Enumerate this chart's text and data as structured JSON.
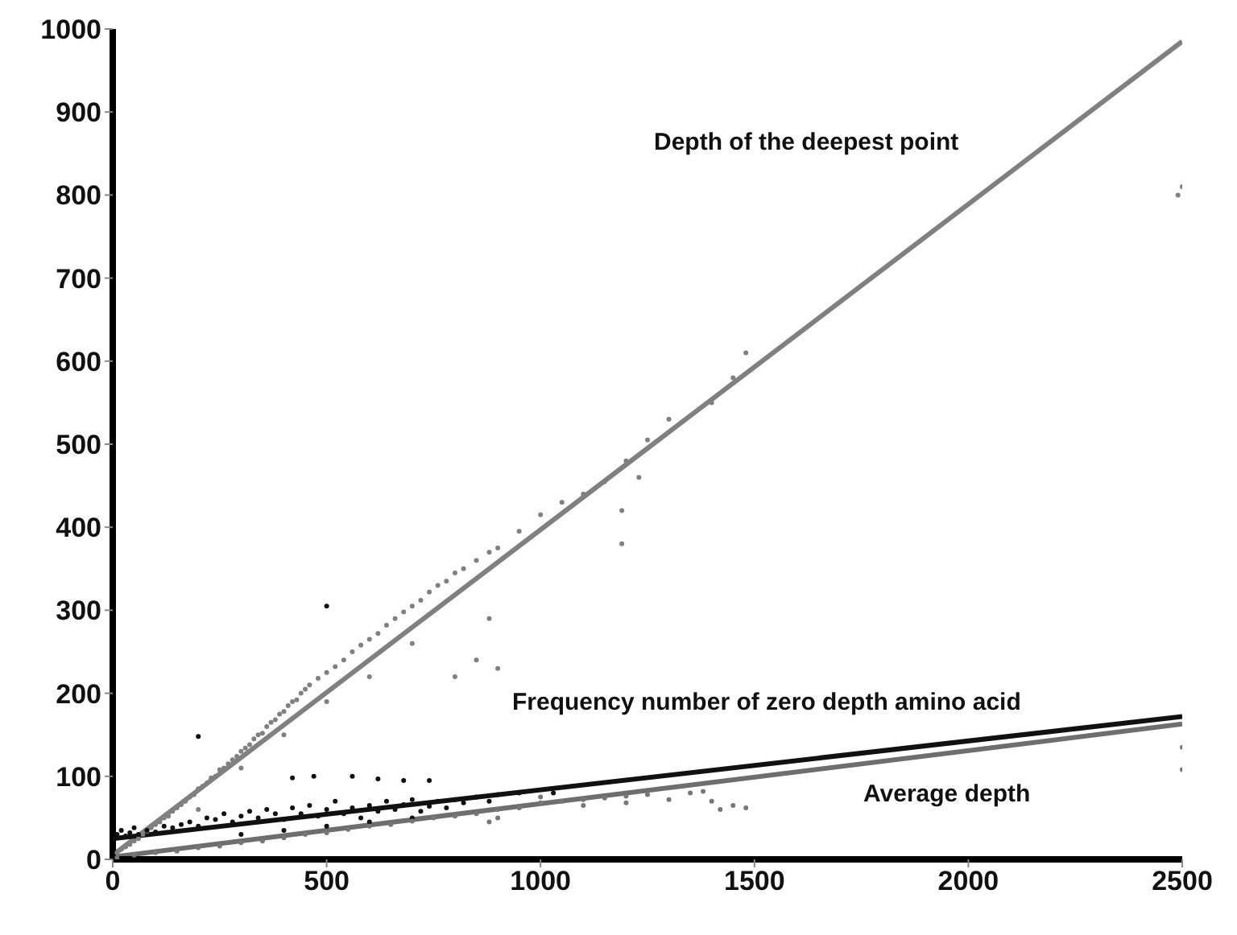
{
  "chart_data": {
    "type": "scatter",
    "xlim": [
      0,
      2500
    ],
    "ylim": [
      0,
      1000
    ],
    "xticks": [
      0,
      500,
      1000,
      1500,
      2000,
      2500
    ],
    "yticks": [
      0,
      100,
      200,
      300,
      400,
      500,
      600,
      700,
      800,
      900,
      1000
    ],
    "grid": false,
    "legend": false,
    "marker": "circle",
    "annotations": [
      "Depth of the deepest point",
      "Frequency number of zero depth amino acid",
      "Average depth"
    ],
    "series": [
      {
        "color": "#808080",
        "x": [
          10,
          20,
          30,
          40,
          50,
          60,
          70,
          80,
          90,
          100,
          110,
          120,
          130,
          140,
          150,
          160,
          170,
          180,
          190,
          200,
          210,
          220,
          230,
          240,
          250,
          260,
          270,
          280,
          290,
          300,
          310,
          320,
          330,
          340,
          350,
          360,
          370,
          380,
          390,
          400,
          410,
          420,
          430,
          440,
          450,
          460,
          480,
          500,
          520,
          540,
          560,
          580,
          600,
          620,
          640,
          660,
          680,
          700,
          720,
          740,
          760,
          780,
          800,
          820,
          850,
          880,
          900,
          950,
          1000,
          1050,
          1100,
          1150,
          1200,
          1250,
          1300,
          1400,
          1450,
          1480,
          2490,
          2500,
          200,
          300,
          400,
          500,
          600,
          700,
          800,
          850,
          880,
          900,
          1190,
          1190,
          1230
        ],
        "values": [
          8,
          12,
          15,
          18,
          22,
          25,
          30,
          34,
          38,
          42,
          45,
          50,
          52,
          58,
          62,
          66,
          70,
          75,
          78,
          85,
          88,
          92,
          98,
          100,
          108,
          110,
          115,
          120,
          124,
          130,
          134,
          138,
          145,
          150,
          152,
          160,
          165,
          168,
          175,
          178,
          185,
          190,
          192,
          200,
          205,
          210,
          218,
          225,
          232,
          240,
          250,
          258,
          265,
          272,
          282,
          290,
          298,
          305,
          312,
          322,
          330,
          335,
          345,
          350,
          360,
          370,
          375,
          395,
          415,
          430,
          440,
          455,
          480,
          505,
          530,
          550,
          580,
          610,
          800,
          810,
          60,
          110,
          150,
          190,
          220,
          260,
          220,
          240,
          290,
          230,
          380,
          420,
          460
        ]
      },
      {
        "color": "#111111",
        "x": [
          0,
          10,
          20,
          30,
          40,
          50,
          60,
          80,
          100,
          120,
          140,
          160,
          180,
          200,
          220,
          240,
          260,
          280,
          300,
          320,
          340,
          360,
          380,
          400,
          420,
          440,
          460,
          480,
          500,
          520,
          540,
          560,
          580,
          600,
          620,
          640,
          660,
          680,
          700,
          720,
          740,
          760,
          780,
          800,
          820,
          850,
          880,
          900,
          950,
          1030,
          200,
          500,
          420,
          470,
          560,
          620,
          680,
          740,
          300,
          400,
          500,
          600,
          700
        ],
        "values": [
          25,
          30,
          35,
          28,
          32,
          38,
          30,
          35,
          33,
          40,
          38,
          42,
          45,
          40,
          50,
          48,
          55,
          45,
          52,
          58,
          50,
          60,
          55,
          48,
          62,
          55,
          65,
          52,
          60,
          70,
          55,
          62,
          50,
          65,
          58,
          70,
          60,
          66,
          72,
          58,
          64,
          70,
          62,
          72,
          68,
          75,
          70,
          78,
          80,
          80,
          148,
          305,
          98,
          100,
          100,
          97,
          95,
          95,
          30,
          35,
          40,
          45,
          50
        ]
      },
      {
        "color": "#777777",
        "x": [
          10,
          50,
          100,
          150,
          200,
          250,
          300,
          350,
          400,
          450,
          500,
          550,
          600,
          650,
          700,
          750,
          800,
          850,
          900,
          950,
          1000,
          1050,
          1100,
          1150,
          1200,
          1250,
          1300,
          1350,
          1380,
          1400,
          1420,
          1450,
          1480,
          2500,
          2500,
          880,
          900,
          1000,
          1100,
          1200
        ],
        "values": [
          2,
          5,
          8,
          10,
          14,
          16,
          20,
          22,
          26,
          30,
          32,
          36,
          40,
          42,
          46,
          50,
          52,
          55,
          60,
          62,
          68,
          70,
          72,
          74,
          76,
          78,
          72,
          80,
          82,
          70,
          60,
          65,
          62,
          135,
          108,
          45,
          50,
          75,
          65,
          68
        ]
      },
      {
        "type": "line",
        "marker": "none",
        "color": "#808080",
        "x": [
          0,
          2500
        ],
        "values": [
          5,
          985
        ]
      },
      {
        "type": "line",
        "marker": "none",
        "color": "#111111",
        "x": [
          0,
          2500
        ],
        "values": [
          25,
          172
        ]
      },
      {
        "type": "line",
        "marker": "none",
        "color": "#6e6e6e",
        "x": [
          0,
          2500
        ],
        "values": [
          3,
          163
        ]
      }
    ]
  }
}
